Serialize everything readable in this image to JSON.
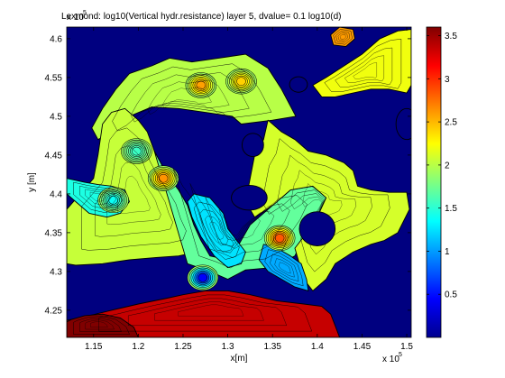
{
  "chart_data": {
    "type": "heatmap",
    "title": "Lexmond: log10(Vertical hydr.resistance) layer 5, dvalue= 0.1 log10(d)",
    "xlabel": "x[m]",
    "ylabel": "y [m]",
    "x_multiplier_label": "x 10",
    "y_multiplier_label": "x 10",
    "multiplier_exponent": "5",
    "xlim": [
      1.12,
      1.505
    ],
    "ylim": [
      4.215,
      4.615
    ],
    "x_ticks": [
      1.15,
      1.2,
      1.25,
      1.3,
      1.35,
      1.4,
      1.45,
      1.5
    ],
    "x_tick_labels": [
      "1.15",
      "1.2",
      "1.25",
      "1.3",
      "1.35",
      "1.4",
      "1.45",
      "1.5"
    ],
    "y_ticks": [
      4.25,
      4.3,
      4.35,
      4.4,
      4.45,
      4.5,
      4.55,
      4.6
    ],
    "y_tick_labels": [
      "4.25",
      "4.3",
      "4.35",
      "4.4",
      "4.45",
      "4.5",
      "4.55",
      "4.6"
    ],
    "colorbar": {
      "range": [
        0,
        3.6
      ],
      "ticks": [
        0.5,
        1,
        1.5,
        2,
        2.5,
        3,
        3.5
      ],
      "tick_labels": [
        "0.5",
        "1",
        "1.5",
        "2",
        "2.5",
        "3",
        "3.5"
      ],
      "colormap": "jet"
    },
    "background_value": 0,
    "regions": [
      {
        "name": "north-plateau",
        "value": 2.0,
        "polygon": [
          [
            1.148,
            4.485
          ],
          [
            1.16,
            4.51
          ],
          [
            1.175,
            4.535
          ],
          [
            1.19,
            4.555
          ],
          [
            1.215,
            4.565
          ],
          [
            1.235,
            4.575
          ],
          [
            1.26,
            4.57
          ],
          [
            1.29,
            4.575
          ],
          [
            1.32,
            4.58
          ],
          [
            1.345,
            4.562
          ],
          [
            1.36,
            4.535
          ],
          [
            1.376,
            4.5
          ],
          [
            1.35,
            4.495
          ],
          [
            1.315,
            4.49
          ],
          [
            1.305,
            4.5
          ],
          [
            1.275,
            4.505
          ],
          [
            1.245,
            4.51
          ],
          [
            1.215,
            4.512
          ],
          [
            1.19,
            4.5
          ],
          [
            1.168,
            4.478
          ],
          [
            1.155,
            4.47
          ]
        ]
      },
      {
        "name": "west-plateau",
        "value": 2.05,
        "polygon": [
          [
            1.16,
            4.49
          ],
          [
            1.17,
            4.505
          ],
          [
            1.185,
            4.51
          ],
          [
            1.2,
            4.495
          ],
          [
            1.21,
            4.48
          ],
          [
            1.218,
            4.455
          ],
          [
            1.232,
            4.425
          ],
          [
            1.245,
            4.405
          ],
          [
            1.255,
            4.385
          ],
          [
            1.262,
            4.36
          ],
          [
            1.27,
            4.34
          ],
          [
            1.265,
            4.325
          ],
          [
            1.245,
            4.32
          ],
          [
            1.22,
            4.318
          ],
          [
            1.19,
            4.315
          ],
          [
            1.16,
            4.31
          ],
          [
            1.13,
            4.308
          ],
          [
            1.12,
            4.31
          ],
          [
            1.12,
            4.38
          ],
          [
            1.135,
            4.4
          ],
          [
            1.15,
            4.42
          ],
          [
            1.155,
            4.45
          ]
        ]
      },
      {
        "name": "center-lowland",
        "value": 1.7,
        "polygon": [
          [
            1.218,
            4.455
          ],
          [
            1.232,
            4.425
          ],
          [
            1.245,
            4.405
          ],
          [
            1.255,
            4.385
          ],
          [
            1.262,
            4.36
          ],
          [
            1.27,
            4.34
          ],
          [
            1.28,
            4.32
          ],
          [
            1.3,
            4.315
          ],
          [
            1.31,
            4.33
          ],
          [
            1.325,
            4.36
          ],
          [
            1.35,
            4.385
          ],
          [
            1.37,
            4.405
          ],
          [
            1.395,
            4.41
          ],
          [
            1.41,
            4.395
          ],
          [
            1.4,
            4.37
          ],
          [
            1.385,
            4.345
          ],
          [
            1.375,
            4.32
          ],
          [
            1.35,
            4.305
          ],
          [
            1.32,
            4.302
          ],
          [
            1.3,
            4.29
          ],
          [
            1.28,
            4.3
          ],
          [
            1.255,
            4.31
          ]
        ]
      },
      {
        "name": "east-plateau",
        "value": 2.1,
        "polygon": [
          [
            1.345,
            4.495
          ],
          [
            1.36,
            4.48
          ],
          [
            1.375,
            4.47
          ],
          [
            1.39,
            4.455
          ],
          [
            1.41,
            4.45
          ],
          [
            1.43,
            4.44
          ],
          [
            1.44,
            4.43
          ],
          [
            1.445,
            4.41
          ],
          [
            1.46,
            4.405
          ],
          [
            1.48,
            4.402
          ],
          [
            1.5,
            4.402
          ],
          [
            1.503,
            4.38
          ],
          [
            1.49,
            4.35
          ],
          [
            1.475,
            4.34
          ],
          [
            1.46,
            4.335
          ],
          [
            1.44,
            4.325
          ],
          [
            1.42,
            4.31
          ],
          [
            1.41,
            4.29
          ],
          [
            1.395,
            4.275
          ],
          [
            1.385,
            4.29
          ],
          [
            1.38,
            4.31
          ],
          [
            1.375,
            4.33
          ],
          [
            1.385,
            4.345
          ],
          [
            1.4,
            4.37
          ],
          [
            1.41,
            4.395
          ],
          [
            1.395,
            4.41
          ],
          [
            1.37,
            4.405
          ],
          [
            1.35,
            4.385
          ],
          [
            1.33,
            4.37
          ],
          [
            1.32,
            4.39
          ],
          [
            1.325,
            4.42
          ],
          [
            1.33,
            4.45
          ],
          [
            1.34,
            4.47
          ]
        ]
      },
      {
        "name": "west-low-band",
        "value": 1.45,
        "polygon": [
          [
            1.12,
            4.4
          ],
          [
            1.13,
            4.39
          ],
          [
            1.145,
            4.375
          ],
          [
            1.165,
            4.37
          ],
          [
            1.18,
            4.375
          ],
          [
            1.19,
            4.39
          ],
          [
            1.185,
            4.405
          ],
          [
            1.17,
            4.41
          ],
          [
            1.155,
            4.412
          ],
          [
            1.14,
            4.415
          ],
          [
            1.12,
            4.42
          ]
        ]
      },
      {
        "name": "central-cyan-valley",
        "value": 1.25,
        "polygon": [
          [
            1.262,
            4.4
          ],
          [
            1.28,
            4.395
          ],
          [
            1.295,
            4.375
          ],
          [
            1.3,
            4.355
          ],
          [
            1.31,
            4.34
          ],
          [
            1.32,
            4.325
          ],
          [
            1.315,
            4.31
          ],
          [
            1.3,
            4.305
          ],
          [
            1.285,
            4.32
          ],
          [
            1.27,
            4.345
          ],
          [
            1.26,
            4.37
          ],
          [
            1.255,
            4.39
          ]
        ]
      },
      {
        "name": "south-east-valley",
        "value": 1.05,
        "polygon": [
          [
            1.34,
            4.335
          ],
          [
            1.355,
            4.33
          ],
          [
            1.37,
            4.32
          ],
          [
            1.382,
            4.31
          ],
          [
            1.388,
            4.29
          ],
          [
            1.39,
            4.275
          ],
          [
            1.375,
            4.28
          ],
          [
            1.36,
            4.29
          ],
          [
            1.345,
            4.3
          ],
          [
            1.335,
            4.315
          ]
        ]
      },
      {
        "name": "northeast-yellow",
        "value": 2.2,
        "polygon": [
          [
            1.395,
            4.54
          ],
          [
            1.41,
            4.55
          ],
          [
            1.43,
            4.565
          ],
          [
            1.45,
            4.58
          ],
          [
            1.47,
            4.6
          ],
          [
            1.49,
            4.61
          ],
          [
            1.505,
            4.612
          ],
          [
            1.505,
            4.54
          ],
          [
            1.5,
            4.53
          ],
          [
            1.48,
            4.535
          ],
          [
            1.46,
            4.535
          ],
          [
            1.44,
            4.53
          ],
          [
            1.42,
            4.525
          ],
          [
            1.405,
            4.525
          ]
        ]
      },
      {
        "name": "northeast-peak",
        "value": 2.6,
        "polygon": [
          [
            1.415,
            4.605
          ],
          [
            1.425,
            4.615
          ],
          [
            1.44,
            4.612
          ],
          [
            1.442,
            4.6
          ],
          [
            1.432,
            4.59
          ],
          [
            1.418,
            4.592
          ]
        ]
      },
      {
        "name": "south-red-zone",
        "value": 3.35,
        "polygon": [
          [
            1.12,
            4.237
          ],
          [
            1.145,
            4.243
          ],
          [
            1.17,
            4.25
          ],
          [
            1.2,
            4.258
          ],
          [
            1.23,
            4.265
          ],
          [
            1.25,
            4.27
          ],
          [
            1.275,
            4.275
          ],
          [
            1.3,
            4.275
          ],
          [
            1.325,
            4.27
          ],
          [
            1.355,
            4.262
          ],
          [
            1.385,
            4.258
          ],
          [
            1.405,
            4.255
          ],
          [
            1.415,
            4.245
          ],
          [
            1.42,
            4.23
          ],
          [
            1.425,
            4.215
          ],
          [
            1.12,
            4.215
          ]
        ]
      },
      {
        "name": "southwest-dark-red",
        "value": 3.6,
        "polygon": [
          [
            1.12,
            4.215
          ],
          [
            1.2,
            4.215
          ],
          [
            1.195,
            4.228
          ],
          [
            1.18,
            4.24
          ],
          [
            1.16,
            4.245
          ],
          [
            1.14,
            4.243
          ],
          [
            1.125,
            4.238
          ],
          [
            1.12,
            4.235
          ]
        ]
      }
    ],
    "hotspots": [
      {
        "name": "peak-north-1",
        "x": 1.27,
        "y": 4.54,
        "value": 2.7
      },
      {
        "name": "peak-north-2",
        "x": 1.315,
        "y": 4.545,
        "value": 2.5
      },
      {
        "name": "peak-west",
        "x": 1.228,
        "y": 4.42,
        "value": 2.75
      },
      {
        "name": "peak-center",
        "x": 1.358,
        "y": 4.343,
        "value": 3.0
      },
      {
        "name": "low-west",
        "x": 1.172,
        "y": 4.392,
        "value": 1.3
      },
      {
        "name": "low-north-west",
        "x": 1.198,
        "y": 4.455,
        "value": 1.5
      },
      {
        "name": "low-south",
        "x": 1.272,
        "y": 4.292,
        "value": 0.2
      }
    ],
    "holes": [
      {
        "name": "hole-north-center",
        "cx": 1.328,
        "cy": 4.463,
        "rx": 0.012,
        "ry": 0.015
      },
      {
        "name": "hole-center",
        "cx": 1.324,
        "cy": 4.395,
        "rx": 0.02,
        "ry": 0.016
      },
      {
        "name": "hole-east",
        "cx": 1.4,
        "cy": 4.355,
        "rx": 0.02,
        "ry": 0.022
      },
      {
        "name": "hole-northeast",
        "cx": 1.379,
        "cy": 4.541,
        "rx": 0.01,
        "ry": 0.01
      },
      {
        "name": "hole-far-east",
        "cx": 1.5,
        "cy": 4.49,
        "rx": 0.012,
        "ry": 0.02
      }
    ]
  }
}
